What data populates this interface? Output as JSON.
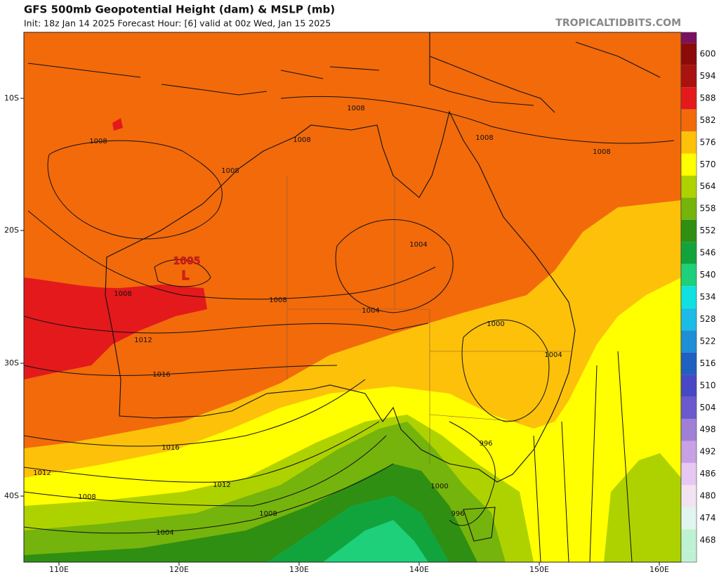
{
  "header": {
    "title": "GFS 500mb Geopotential Height (dam) & MSLP (mb)",
    "subtitle": "Init: 18z Jan 14 2025   Forecast Hour: [6]   valid at 00z Wed, Jan 15 2025",
    "site": "TROPICALTIDBITS.COM"
  },
  "lat_labels": [
    "10S",
    "20S",
    "30S",
    "40S"
  ],
  "lon_labels": [
    "110E",
    "120E",
    "130E",
    "140E",
    "150E",
    "160E"
  ],
  "low": {
    "pressure": "1005",
    "symbol": "L"
  },
  "isobar_labels": [
    "1008",
    "1008",
    "1008",
    "1008",
    "1008",
    "1008",
    "1004",
    "1008",
    "1008",
    "1004",
    "1000",
    "1004",
    "1012",
    "1016",
    "1016",
    "1012",
    "1012",
    "1008",
    "996",
    "1000",
    "996",
    "1008",
    "1004"
  ],
  "colorbar": [
    {
      "label": "600",
      "color": "#8b0a0a"
    },
    {
      "label": "594",
      "color": "#a8120f"
    },
    {
      "label": "588",
      "color": "#e3191c"
    },
    {
      "label": "582",
      "color": "#f26a0a"
    },
    {
      "label": "576",
      "color": "#fdc10a"
    },
    {
      "label": "570",
      "color": "#ffff00"
    },
    {
      "label": "564",
      "color": "#aed200"
    },
    {
      "label": "558",
      "color": "#74b40c"
    },
    {
      "label": "552",
      "color": "#2f8f12"
    },
    {
      "label": "546",
      "color": "#12a43c"
    },
    {
      "label": "540",
      "color": "#1ed07a"
    },
    {
      "label": "534",
      "color": "#10e0e0"
    },
    {
      "label": "528",
      "color": "#1cbce6"
    },
    {
      "label": "522",
      "color": "#1e8ed6"
    },
    {
      "label": "516",
      "color": "#2060c0"
    },
    {
      "label": "510",
      "color": "#4848c4"
    },
    {
      "label": "504",
      "color": "#6a5acd"
    },
    {
      "label": "498",
      "color": "#a080d4"
    },
    {
      "label": "492",
      "color": "#c8a0e4"
    },
    {
      "label": "486",
      "color": "#e6c8f2"
    },
    {
      "label": "480",
      "color": "#f2e2f2"
    },
    {
      "label": "474",
      "color": "#e0f4f0"
    },
    {
      "label": "468",
      "color": "#bff2d2"
    }
  ]
}
